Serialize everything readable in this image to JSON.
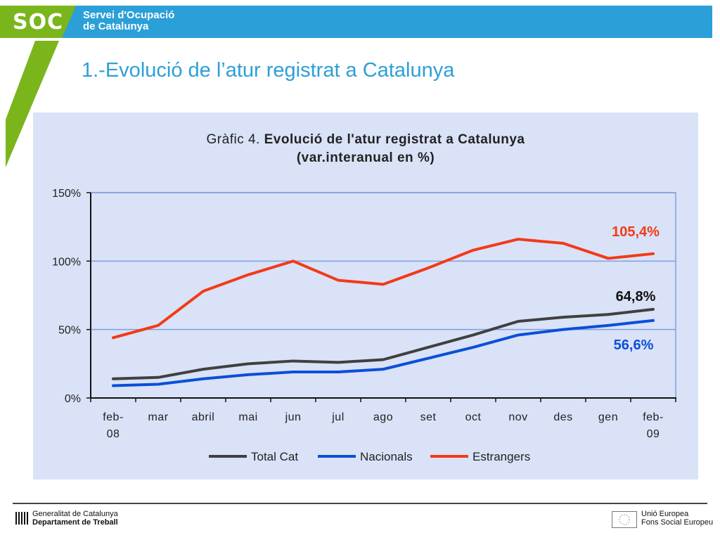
{
  "header": {
    "logo_text": "SOC",
    "org_line1": "Servei d'Ocupació",
    "org_line2": "de Catalunya",
    "colors": {
      "green": "#7bb51c",
      "blue": "#2b9fd8"
    }
  },
  "page_title": "1.-Evolució de l’atur registrat a Catalunya",
  "chart_data": {
    "type": "line",
    "title_prefix": "Gràfic 4. ",
    "title_bold": "Evolució de l'atur registrat a Catalunya",
    "title_line2": "(var.interanual en %)",
    "categories": [
      "feb-08",
      "mar",
      "abril",
      "mai",
      "jun",
      "jul",
      "ago",
      "set",
      "oct",
      "nov",
      "des",
      "gen",
      "feb-09"
    ],
    "x_tick_labels": [
      [
        "feb-",
        "08"
      ],
      [
        "mar"
      ],
      [
        "abril"
      ],
      [
        "mai"
      ],
      [
        "jun"
      ],
      [
        "jul"
      ],
      [
        "ago"
      ],
      [
        "set"
      ],
      [
        "oct"
      ],
      [
        "nov"
      ],
      [
        "des"
      ],
      [
        "gen"
      ],
      [
        "feb-",
        "09"
      ]
    ],
    "ylim": [
      0,
      150
    ],
    "y_ticks": [
      0,
      50,
      100,
      150
    ],
    "y_tick_labels": [
      "0%",
      "50%",
      "100%",
      "150%"
    ],
    "grid": true,
    "legend_position": "bottom",
    "series": [
      {
        "name": "Total Cat",
        "color": "#404040",
        "values": [
          14,
          15,
          21,
          25,
          27,
          26,
          28,
          37,
          46,
          56,
          59,
          61,
          64.8
        ]
      },
      {
        "name": "Nacionals",
        "color": "#0b4fd8",
        "values": [
          9,
          10,
          14,
          17,
          19,
          19,
          21,
          29,
          37,
          46,
          50,
          53,
          56.6
        ]
      },
      {
        "name": "Estrangers",
        "color": "#f23a17",
        "values": [
          44,
          53,
          78,
          90,
          100,
          86,
          83,
          95,
          108,
          116,
          113,
          102,
          105.4
        ]
      }
    ],
    "annotations": [
      {
        "text": "105,4%",
        "color": "#f23a17"
      },
      {
        "text": "64,8%",
        "color": "#111111"
      },
      {
        "text": "56,6%",
        "color": "#0b4fd8"
      }
    ]
  },
  "footer": {
    "gencat_line1": "Generalitat de Catalunya",
    "gencat_line2": "Departament de Treball",
    "eu_line1": "Unió Europea",
    "eu_line2": "Fons Social Europeu"
  }
}
